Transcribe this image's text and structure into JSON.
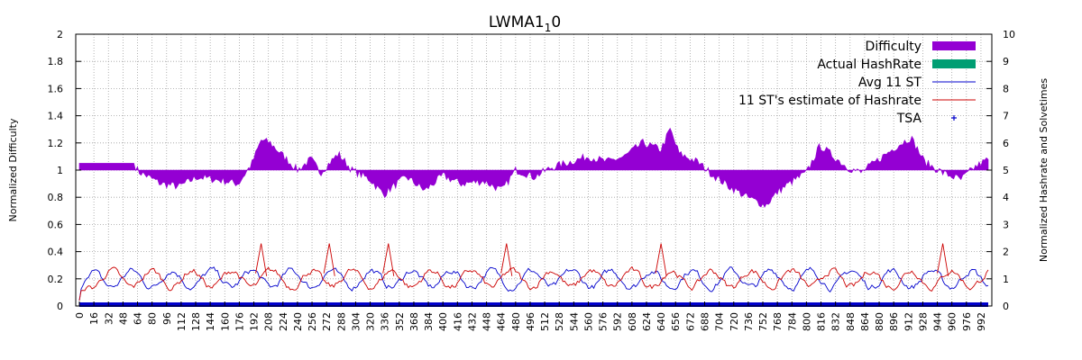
{
  "chart_data": {
    "type": "area",
    "title": {
      "text": "LWMA1",
      "sub": "1",
      "tail": "0"
    },
    "xlabel": "",
    "ylabel": "Normalized Difficulty",
    "y2label": "Normalized Hashrate and Solvetimes",
    "xlim": [
      0,
      1000
    ],
    "ylim": [
      0,
      2
    ],
    "y2lim": [
      0,
      10
    ],
    "grid": true,
    "legend_position": "top-right",
    "x_ticks": [
      0,
      16,
      32,
      48,
      64,
      80,
      96,
      112,
      128,
      144,
      160,
      176,
      192,
      208,
      224,
      240,
      256,
      272,
      288,
      304,
      320,
      336,
      352,
      368,
      384,
      400,
      416,
      432,
      448,
      464,
      480,
      496,
      512,
      528,
      544,
      560,
      576,
      592,
      608,
      624,
      640,
      656,
      672,
      688,
      704,
      720,
      736,
      752,
      768,
      784,
      800,
      816,
      832,
      848,
      864,
      880,
      896,
      912,
      928,
      944,
      960,
      976,
      992
    ],
    "y_ticks": [
      "0",
      "0.2",
      "0.4",
      "0.6",
      "0.8",
      "1",
      "1.2",
      "1.4",
      "1.6",
      "1.8",
      "2"
    ],
    "y2_ticks": [
      "0",
      "1",
      "2",
      "3",
      "4",
      "5",
      "6",
      "7",
      "8",
      "9",
      "10"
    ],
    "legend": [
      {
        "label": "Difficulty",
        "color": "#9400d3",
        "style": "box"
      },
      {
        "label": "Actual HashRate",
        "color": "#009e73",
        "style": "box"
      },
      {
        "label": "Avg 11 ST",
        "color": "#0000cc",
        "style": "line"
      },
      {
        "label": "11 ST's estimate of Hashrate",
        "color": "#cc0000",
        "style": "line"
      },
      {
        "label": "TSA",
        "color": "#0000cc",
        "style": "plus"
      }
    ],
    "difficulty_anchor_x": [
      0,
      60,
      65,
      90,
      110,
      130,
      160,
      175,
      190,
      200,
      210,
      225,
      240,
      255,
      265,
      285,
      300,
      320,
      335,
      345,
      360,
      380,
      400,
      420,
      445,
      465,
      480,
      490,
      500,
      520,
      540,
      560,
      580,
      600,
      620,
      640,
      650,
      660,
      680,
      700,
      715,
      735,
      755,
      770,
      785,
      800,
      815,
      830,
      845,
      860,
      880,
      900,
      915,
      930,
      950,
      970,
      985,
      1000
    ],
    "difficulty_anchor_y": [
      1.05,
      1.05,
      0.99,
      0.9,
      0.88,
      0.95,
      0.92,
      0.9,
      1.05,
      1.22,
      1.2,
      1.1,
      1.0,
      1.08,
      0.98,
      1.12,
      1.0,
      0.93,
      0.82,
      0.88,
      0.95,
      0.85,
      0.96,
      0.9,
      0.92,
      0.85,
      1.0,
      0.98,
      0.95,
      1.02,
      1.06,
      1.1,
      1.06,
      1.1,
      1.2,
      1.15,
      1.3,
      1.12,
      1.06,
      0.95,
      0.88,
      0.8,
      0.74,
      0.85,
      0.92,
      0.98,
      1.18,
      1.1,
      1.02,
      0.98,
      1.08,
      1.18,
      1.24,
      1.06,
      0.98,
      0.93,
      1.02,
      1.08
    ],
    "solvetime_baseline": 1.0,
    "series_range_y2": [
      0.2,
      2.5
    ]
  }
}
